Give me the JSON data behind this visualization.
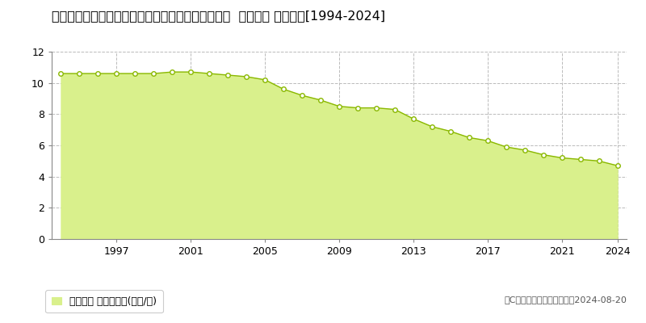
{
  "title": "鳥取県東伯郡三朝町大字山田字下前河原７２３番３  地価公示 地価推移[1994-2024]",
  "years": [
    1994,
    1995,
    1996,
    1997,
    1998,
    1999,
    2000,
    2001,
    2002,
    2003,
    2004,
    2005,
    2006,
    2007,
    2008,
    2009,
    2010,
    2011,
    2012,
    2013,
    2014,
    2015,
    2016,
    2017,
    2018,
    2019,
    2020,
    2021,
    2022,
    2023,
    2024
  ],
  "values": [
    10.6,
    10.6,
    10.6,
    10.6,
    10.6,
    10.6,
    10.7,
    10.7,
    10.6,
    10.5,
    10.4,
    10.2,
    9.6,
    9.2,
    8.9,
    8.5,
    8.4,
    8.4,
    8.3,
    7.7,
    7.2,
    6.9,
    6.5,
    6.3,
    5.9,
    5.7,
    5.4,
    5.2,
    5.1,
    5.0,
    4.7
  ],
  "ylim": [
    0,
    12
  ],
  "yticks": [
    0,
    2,
    4,
    6,
    8,
    10,
    12
  ],
  "fill_color": "#d9f08c",
  "line_color": "#8ab800",
  "marker_color": "#ffffff",
  "marker_edge_color": "#8ab800",
  "grid_color": "#bbbbbb",
  "bg_color": "#ffffff",
  "plot_bg_color": "#ffffff",
  "legend_label": "地価公示 平均坪単価(万円/坪)",
  "copyright_text": "（C）土地価格ドットコム　2024-08-20",
  "title_fontsize": 11.5,
  "tick_fontsize": 9,
  "legend_fontsize": 9,
  "copyright_fontsize": 8,
  "xtick_years": [
    1997,
    2001,
    2005,
    2009,
    2013,
    2017,
    2021,
    2024
  ]
}
